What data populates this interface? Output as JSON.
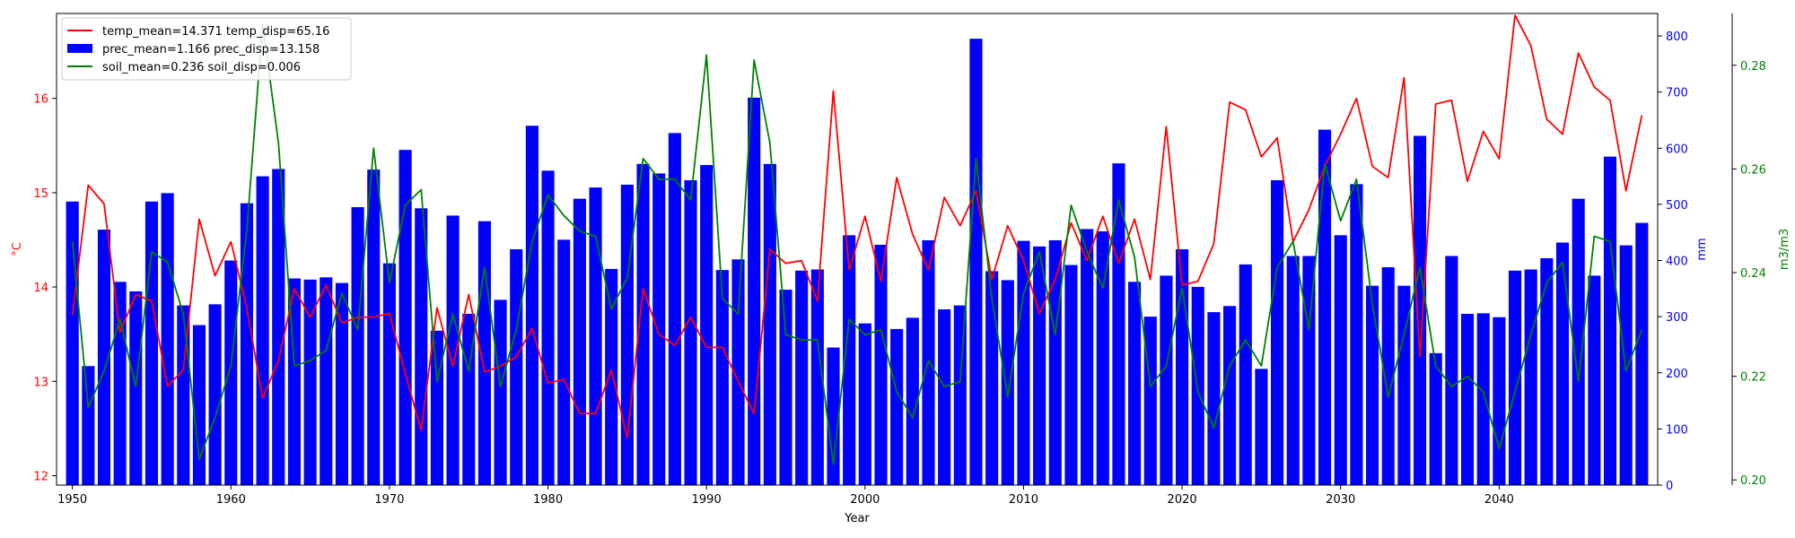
{
  "chart_data": {
    "type": "bar+line",
    "title": "",
    "xlabel": "Year",
    "xlim": [
      1949,
      2050
    ],
    "x_ticks": [
      1950,
      1960,
      1970,
      1980,
      1990,
      2000,
      2010,
      2020,
      2030,
      2040
    ],
    "grid": false,
    "legend_position": "top-left",
    "axes": {
      "temp": {
        "label": "°C",
        "color": "#ff0000",
        "ylim": [
          11.9,
          16.9
        ],
        "ticks": [
          12,
          13,
          14,
          15,
          16
        ],
        "side": "left"
      },
      "prec": {
        "label": "mm",
        "color": "#0000ff",
        "ylim": [
          0,
          840
        ],
        "ticks": [
          0,
          100,
          200,
          300,
          400,
          500,
          600,
          700,
          800
        ],
        "side": "right"
      },
      "soil": {
        "label": "m3/m3",
        "color": "#008000",
        "ylim": [
          0.199,
          0.29
        ],
        "ticks": [
          0.2,
          0.22,
          0.24,
          0.26,
          0.28
        ],
        "side": "right-outer"
      }
    },
    "x": [
      1950,
      1951,
      1952,
      1953,
      1954,
      1955,
      1956,
      1957,
      1958,
      1959,
      1960,
      1961,
      1962,
      1963,
      1964,
      1965,
      1966,
      1967,
      1968,
      1969,
      1970,
      1971,
      1972,
      1973,
      1974,
      1975,
      1976,
      1977,
      1978,
      1979,
      1980,
      1981,
      1982,
      1983,
      1984,
      1985,
      1986,
      1987,
      1988,
      1989,
      1990,
      1991,
      1992,
      1993,
      1994,
      1995,
      1996,
      1997,
      1998,
      1999,
      2000,
      2001,
      2002,
      2003,
      2004,
      2005,
      2006,
      2007,
      2008,
      2009,
      2010,
      2011,
      2012,
      2013,
      2014,
      2015,
      2016,
      2017,
      2018,
      2019,
      2020,
      2021,
      2022,
      2023,
      2024,
      2025,
      2026,
      2027,
      2028,
      2029,
      2030,
      2031,
      2032,
      2033,
      2034,
      2035,
      2036,
      2037,
      2038,
      2039,
      2040,
      2041,
      2042,
      2043,
      2044,
      2045,
      2046,
      2047,
      2048,
      2049
    ],
    "series": [
      {
        "name": "prec_mean=1.166 prec_disp=13.158",
        "type": "bar",
        "color": "#0000ff",
        "axis": "prec",
        "values": [
          505,
          212,
          455,
          362,
          345,
          505,
          520,
          320,
          285,
          322,
          400,
          502,
          550,
          563,
          368,
          366,
          370,
          360,
          495,
          562,
          395,
          597,
          493,
          275,
          480,
          305,
          470,
          330,
          420,
          640,
          560,
          437,
          510,
          530,
          385,
          535,
          572,
          555,
          627,
          543,
          570,
          383,
          402,
          690,
          572,
          348,
          382,
          384,
          245,
          445,
          288,
          428,
          278,
          298,
          436,
          313,
          320,
          795,
          381,
          365,
          435,
          425,
          436,
          392,
          456,
          452,
          573,
          362,
          300,
          373,
          420,
          353,
          308,
          319,
          393,
          207,
          543,
          408,
          408,
          633,
          445,
          536,
          355,
          388,
          355,
          622,
          235,
          408,
          305,
          306,
          299,
          382,
          384,
          404,
          432,
          510,
          373,
          585,
          427,
          467
        ]
      },
      {
        "name": "temp_mean=14.371 temp_disp=65.16",
        "type": "line",
        "color": "#ff0000",
        "axis": "temp",
        "values": [
          13.7,
          15.08,
          14.88,
          13.52,
          13.92,
          13.85,
          12.95,
          13.12,
          14.72,
          14.12,
          14.48,
          13.78,
          12.82,
          13.22,
          13.98,
          13.68,
          14.02,
          13.62,
          13.68,
          13.68,
          13.72,
          13.08,
          12.48,
          13.78,
          13.16,
          13.92,
          13.1,
          13.16,
          13.26,
          13.56,
          12.98,
          13.02,
          12.66,
          12.66,
          13.12,
          12.4,
          13.98,
          13.5,
          13.38,
          13.68,
          13.36,
          13.36,
          13.0,
          12.66,
          14.4,
          14.25,
          14.28,
          13.85,
          16.08,
          14.18,
          14.75,
          14.06,
          15.16,
          14.56,
          14.18,
          14.95,
          14.65,
          15.02,
          14.08,
          14.65,
          14.28,
          13.72,
          14.08,
          14.68,
          14.28,
          14.75,
          14.25,
          14.72,
          14.08,
          15.7,
          14.02,
          14.06,
          14.46,
          15.96,
          15.88,
          15.38,
          15.58,
          14.48,
          14.82,
          15.28,
          15.62,
          16.0,
          15.28,
          15.16,
          16.22,
          13.26,
          15.94,
          15.98,
          15.12,
          15.65,
          15.36,
          16.88,
          16.56,
          15.78,
          15.62,
          16.48,
          16.12,
          15.98,
          15.02,
          15.82
        ]
      },
      {
        "name": "soil_mean=0.236 soil_disp=0.006",
        "type": "line",
        "color": "#008000",
        "axis": "soil",
        "values": [
          0.246,
          0.214,
          0.221,
          0.231,
          0.218,
          0.244,
          0.242,
          0.232,
          0.204,
          0.212,
          0.222,
          0.248,
          0.288,
          0.265,
          0.222,
          0.223,
          0.225,
          0.236,
          0.229,
          0.264,
          0.238,
          0.253,
          0.256,
          0.219,
          0.232,
          0.221,
          0.241,
          0.218,
          0.229,
          0.246,
          0.255,
          0.251,
          0.248,
          0.247,
          0.233,
          0.239,
          0.262,
          0.258,
          0.258,
          0.254,
          0.282,
          0.235,
          0.232,
          0.281,
          0.265,
          0.228,
          0.227,
          0.227,
          0.203,
          0.231,
          0.228,
          0.229,
          0.217,
          0.212,
          0.223,
          0.218,
          0.219,
          0.262,
          0.235,
          0.216,
          0.236,
          0.244,
          0.228,
          0.253,
          0.244,
          0.237,
          0.254,
          0.243,
          0.218,
          0.222,
          0.237,
          0.217,
          0.21,
          0.222,
          0.227,
          0.222,
          0.241,
          0.246,
          0.229,
          0.261,
          0.25,
          0.258,
          0.234,
          0.216,
          0.228,
          0.241,
          0.222,
          0.218,
          0.22,
          0.217,
          0.206,
          0.217,
          0.228,
          0.238,
          0.242,
          0.219,
          0.247,
          0.246,
          0.221,
          0.229
        ]
      }
    ]
  }
}
